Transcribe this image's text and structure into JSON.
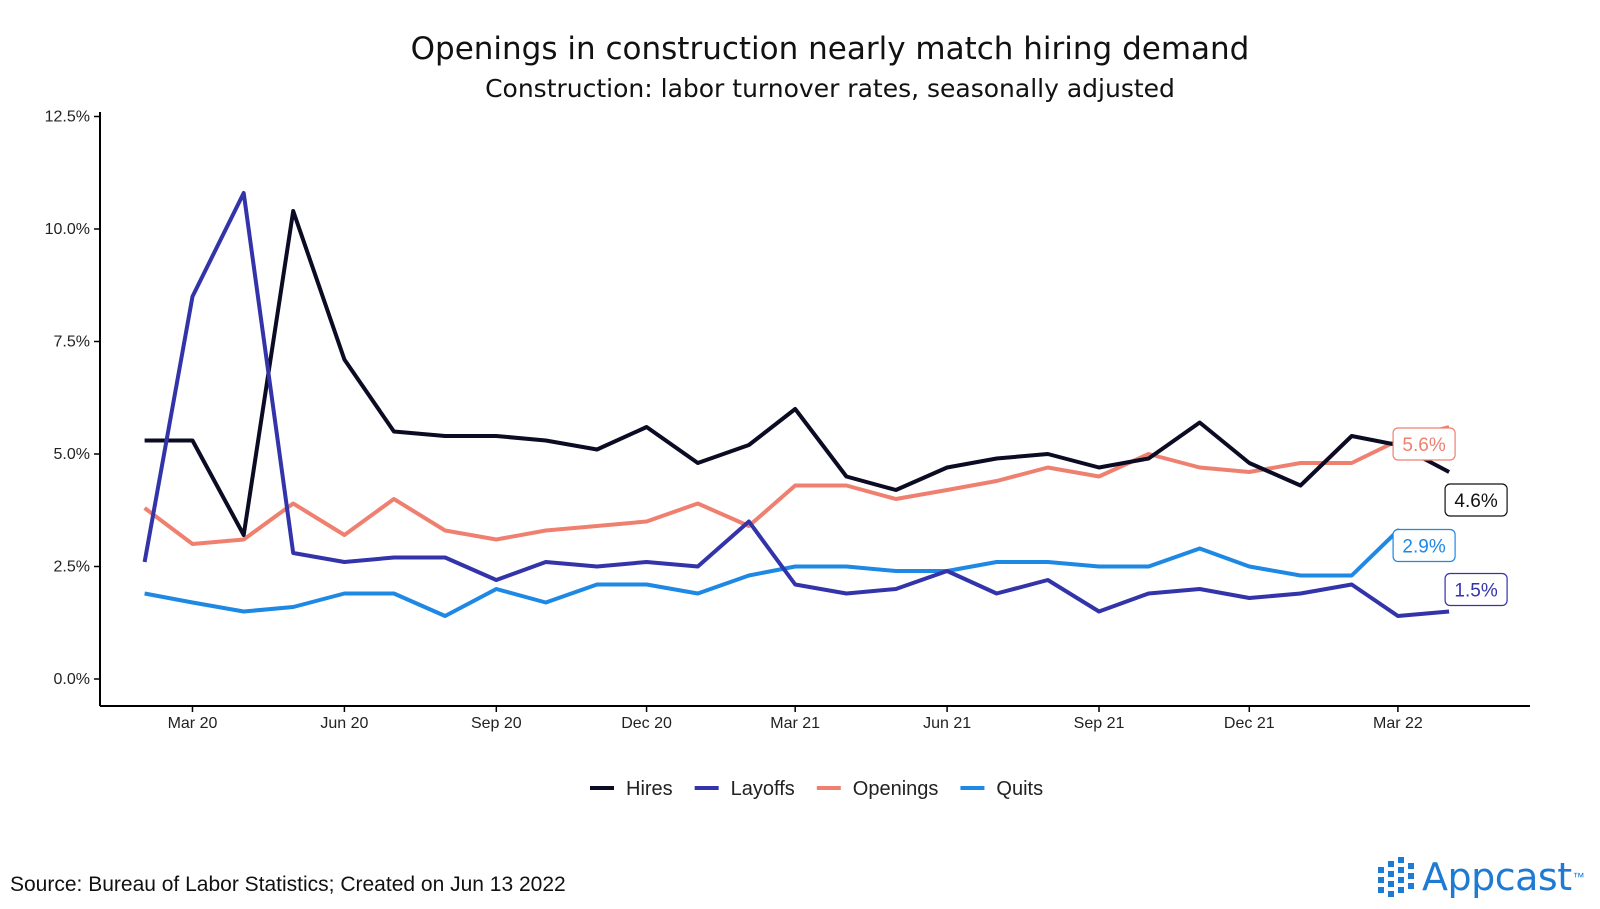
{
  "chart_data": {
    "type": "line",
    "title": "Openings in construction nearly match hiring demand",
    "subtitle": "Construction: labor turnover rates, seasonally adjusted",
    "x": [
      "2020-02",
      "2020-03",
      "2020-04",
      "2020-05",
      "2020-06",
      "2020-07",
      "2020-08",
      "2020-09",
      "2020-10",
      "2020-11",
      "2020-12",
      "2021-01",
      "2021-02",
      "2021-03",
      "2021-04",
      "2021-05",
      "2021-06",
      "2021-07",
      "2021-08",
      "2021-09",
      "2021-10",
      "2021-11",
      "2021-12",
      "2022-01",
      "2022-02",
      "2022-03",
      "2022-04"
    ],
    "x_ticks": [
      {
        "value": "2020-03",
        "label": "Mar 20"
      },
      {
        "value": "2020-06",
        "label": "Jun 20"
      },
      {
        "value": "2020-09",
        "label": "Sep 20"
      },
      {
        "value": "2020-12",
        "label": "Dec 20"
      },
      {
        "value": "2021-03",
        "label": "Mar 21"
      },
      {
        "value": "2021-06",
        "label": "Jun 21"
      },
      {
        "value": "2021-09",
        "label": "Sep 21"
      },
      {
        "value": "2021-12",
        "label": "Dec 21"
      },
      {
        "value": "2022-03",
        "label": "Mar 22"
      }
    ],
    "y_ticks": [
      {
        "value": 0,
        "label": "0.0%"
      },
      {
        "value": 2.5,
        "label": "2.5%"
      },
      {
        "value": 5,
        "label": "5.0%"
      },
      {
        "value": 7.5,
        "label": "7.5%"
      },
      {
        "value": 10,
        "label": "10.0%"
      },
      {
        "value": 12.5,
        "label": "12.5%"
      }
    ],
    "ylim": [
      -0.6,
      12.6
    ],
    "xlim": [
      "2020-01-05",
      "2022-05-20"
    ],
    "grid": false,
    "legend_position": "bottom",
    "series": [
      {
        "name": "Hires",
        "color": "#0b0b24",
        "values": [
          5.3,
          5.3,
          3.2,
          10.4,
          7.1,
          5.5,
          5.4,
          5.4,
          5.3,
          5.1,
          5.6,
          4.8,
          5.2,
          6.0,
          4.5,
          4.2,
          4.7,
          4.9,
          5.0,
          4.7,
          4.9,
          5.7,
          4.8,
          4.3,
          5.4,
          5.2,
          4.6
        ],
        "end_label": "4.6%"
      },
      {
        "name": "Layoffs",
        "color": "#3333aa",
        "values": [
          2.6,
          8.5,
          10.8,
          2.8,
          2.6,
          2.7,
          2.7,
          2.2,
          2.6,
          2.5,
          2.6,
          2.5,
          3.5,
          2.1,
          1.9,
          2.0,
          2.4,
          1.9,
          2.2,
          1.5,
          1.9,
          2.0,
          1.8,
          1.9,
          2.1,
          1.4,
          1.5
        ],
        "end_label": "1.5%"
      },
      {
        "name": "Openings",
        "color": "#ef8070",
        "values": [
          3.8,
          3.0,
          3.1,
          3.9,
          3.2,
          4.0,
          3.3,
          3.1,
          3.3,
          3.4,
          3.5,
          3.9,
          3.4,
          4.3,
          4.3,
          4.0,
          4.2,
          4.4,
          4.7,
          4.5,
          5.0,
          4.7,
          4.6,
          4.8,
          4.8,
          5.3,
          5.6
        ],
        "end_label": "5.6%"
      },
      {
        "name": "Quits",
        "color": "#1e88e5",
        "values": [
          1.9,
          1.7,
          1.5,
          1.6,
          1.9,
          1.9,
          1.4,
          2.0,
          1.7,
          2.1,
          2.1,
          1.9,
          2.3,
          2.5,
          2.5,
          2.4,
          2.4,
          2.6,
          2.6,
          2.5,
          2.5,
          2.9,
          2.5,
          2.3,
          2.3,
          3.3,
          2.9
        ],
        "end_label": "2.9%"
      }
    ]
  },
  "footer": {
    "source": "Source: Bureau of Labor Statistics; Created on Jun 13 2022",
    "brand": "Appcast",
    "brand_tm": "™",
    "brand_color": "#1e7bd3"
  }
}
